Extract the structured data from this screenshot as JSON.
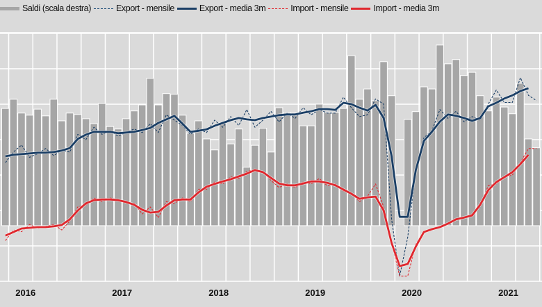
{
  "chart_data": {
    "type": "bar+line",
    "frequency": "monthly",
    "start_month": "2016-04",
    "xlabel": "",
    "ylabel": "",
    "x_tick_labels": [
      "2016",
      "2017",
      "2018",
      "2019",
      "2020",
      "2021"
    ],
    "ylim_left": [
      0,
      70
    ],
    "ylim_right": [
      -15.7,
      54.3
    ],
    "grid": true,
    "legend_position": "top",
    "legend": [
      "Saldi (scala destra)",
      "Export - mensile",
      "Export - media 3m",
      "Import - mensile",
      "Import - media 3m"
    ],
    "colors": {
      "bars": "#a6a6a6",
      "export": "#1b3f66",
      "import": "#e0282e",
      "grid": "#ffffff",
      "background": "#dadada"
    },
    "series": [
      {
        "name": "Saldi (scala destra)",
        "type": "bar",
        "axis": "right",
        "values": [
          33.1,
          35.7,
          31.8,
          31.2,
          32.9,
          31.0,
          35.7,
          29.6,
          31.8,
          31.4,
          30.2,
          28.8,
          34.5,
          28.0,
          27.3,
          30.2,
          32.4,
          34.1,
          41.6,
          34.1,
          37.3,
          37.1,
          31.2,
          26.1,
          29.6,
          24.5,
          21.4,
          29.0,
          23.1,
          27.3,
          16.5,
          22.7,
          27.5,
          20.8,
          33.3,
          32.0,
          31.8,
          28.2,
          28.2,
          34.3,
          32.0,
          32.0,
          33.1,
          48.0,
          35.7,
          38.6,
          35.3,
          46.3,
          36.7,
          0,
          30.0,
          32.2,
          39.2,
          38.6,
          51.0,
          45.7,
          46.9,
          42.4,
          43.3,
          36.7,
          32.4,
          36.3,
          33.5,
          31.6,
          40.2,
          24.5,
          22.0
        ]
      },
      {
        "name": "Export - mensile",
        "type": "line",
        "style": "dashed",
        "axis": "left",
        "values": [
          33.5,
          36.5,
          38.5,
          35.0,
          36.0,
          37.5,
          35.5,
          37.0,
          36.5,
          41.5,
          40.0,
          43.5,
          41.5,
          42.5,
          41.0,
          42.0,
          43.0,
          42.0,
          44.5,
          42.0,
          47.0,
          45.5,
          44.0,
          41.5,
          43.0,
          42.0,
          45.5,
          43.5,
          46.5,
          44.0,
          48.5,
          43.5,
          45.5,
          48.0,
          45.0,
          47.5,
          46.0,
          49.0,
          47.0,
          48.5,
          47.5,
          47.5,
          52.0,
          49.0,
          46.5,
          47.0,
          51.5,
          50.0,
          17.5,
          1.5,
          12.5,
          31.5,
          40.5,
          42.5,
          48.5,
          46.0,
          48.0,
          45.0,
          46.5,
          45.5,
          50.0,
          54.0,
          50.5,
          50.5,
          57.5,
          52.5,
          51.0
        ]
      },
      {
        "name": "Export - media 3m",
        "type": "line",
        "style": "solid",
        "axis": "left",
        "values": [
          35.3,
          35.7,
          35.9,
          36.1,
          36.3,
          36.3,
          36.5,
          36.9,
          37.6,
          40.2,
          41.4,
          42.2,
          42.2,
          42.2,
          41.8,
          42.0,
          42.2,
          42.7,
          43.3,
          44.7,
          45.7,
          46.7,
          44.5,
          42.2,
          42.5,
          42.9,
          43.9,
          44.7,
          45.5,
          46.1,
          45.7,
          45.5,
          46.1,
          46.5,
          46.9,
          47.1,
          47.1,
          47.6,
          48.0,
          48.6,
          48.6,
          48.4,
          50.4,
          50.0,
          49.0,
          48.2,
          49.8,
          46.1,
          35.3,
          18.2,
          18.2,
          31.4,
          39.6,
          42.2,
          45.1,
          47.1,
          46.7,
          46.1,
          45.3,
          46.1,
          49.4,
          50.4,
          51.6,
          52.5,
          53.7,
          54.5,
          null
        ]
      },
      {
        "name": "Import - mensile",
        "type": "line",
        "style": "dashed",
        "axis": "left",
        "values": [
          11.5,
          14.5,
          14.0,
          16.0,
          15.0,
          15.5,
          16.0,
          14.5,
          17.0,
          21.0,
          21.5,
          23.5,
          22.5,
          23.5,
          23.0,
          22.0,
          22.0,
          19.0,
          21.0,
          18.0,
          22.5,
          22.0,
          23.5,
          22.5,
          26.0,
          26.0,
          28.0,
          27.5,
          29.5,
          29.0,
          31.0,
          31.5,
          31.0,
          28.5,
          26.5,
          27.5,
          26.5,
          28.0,
          27.5,
          29.0,
          27.0,
          27.5,
          25.5,
          25.0,
          22.5,
          24.0,
          27.5,
          21.0,
          11.0,
          1.5,
          1.5,
          10.5,
          14.0,
          14.5,
          15.5,
          16.0,
          17.5,
          18.0,
          19.0,
          21.0,
          27.0,
          27.5,
          29.5,
          30.0,
          33.5,
          37.5,
          37.5
        ]
      },
      {
        "name": "Import - media 3m",
        "type": "line",
        "style": "solid",
        "axis": "left",
        "values": [
          12.9,
          13.9,
          14.9,
          15.1,
          15.3,
          15.3,
          15.5,
          15.9,
          17.5,
          20.0,
          22.0,
          22.9,
          23.1,
          23.1,
          22.9,
          22.4,
          21.6,
          20.2,
          19.4,
          19.6,
          21.4,
          22.9,
          23.1,
          23.1,
          25.1,
          26.7,
          27.5,
          28.2,
          28.8,
          29.6,
          30.4,
          31.4,
          30.8,
          29.2,
          27.6,
          27.1,
          27.1,
          27.6,
          28.2,
          28.2,
          27.8,
          27.1,
          25.9,
          24.7,
          23.3,
          23.7,
          23.9,
          20.0,
          10.8,
          4.3,
          4.9,
          9.8,
          13.9,
          14.7,
          15.3,
          16.3,
          17.5,
          18.0,
          18.6,
          21.6,
          25.7,
          28.0,
          29.4,
          30.8,
          33.1,
          35.7,
          null
        ]
      }
    ]
  }
}
